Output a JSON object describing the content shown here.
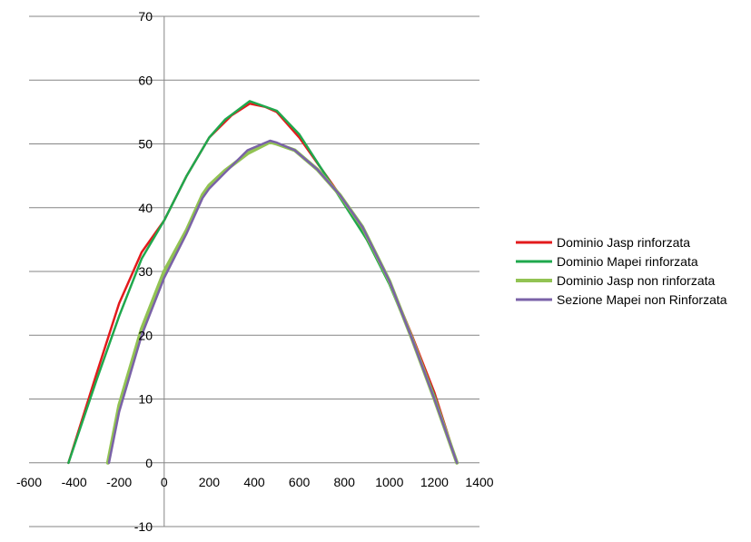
{
  "chart_data": {
    "type": "line",
    "title": "",
    "xlabel": "",
    "ylabel": "",
    "xlim": [
      -600,
      1400
    ],
    "ylim": [
      -10,
      70
    ],
    "x_ticks": [
      -600,
      -400,
      -200,
      0,
      200,
      400,
      600,
      800,
      1000,
      1200,
      1400
    ],
    "y_ticks": [
      -10,
      0,
      10,
      20,
      30,
      40,
      50,
      60,
      70
    ],
    "x_tick_labels": [
      "-600",
      "-400",
      "-200",
      "0",
      "200",
      "400",
      "600",
      "800",
      "1000",
      "1200",
      "1400"
    ],
    "y_tick_labels": [
      "-10",
      "0",
      "10",
      "20",
      "30",
      "40",
      "50",
      "60",
      "70"
    ],
    "grid": "horizontal",
    "legend_position": "right",
    "series": [
      {
        "name": "Dominio Jasp rinforzata",
        "color": "#e31a1c",
        "width": 2.5,
        "points": [
          [
            -425,
            0
          ],
          [
            -300,
            14
          ],
          [
            -200,
            25
          ],
          [
            -100,
            33
          ],
          [
            0,
            38
          ],
          [
            100,
            45
          ],
          [
            200,
            51
          ],
          [
            300,
            54.5
          ],
          [
            380,
            56.3
          ],
          [
            450,
            55.8
          ],
          [
            500,
            55
          ],
          [
            600,
            51
          ],
          [
            700,
            46
          ],
          [
            800,
            41
          ],
          [
            900,
            35
          ],
          [
            1000,
            28.5
          ],
          [
            1100,
            20
          ],
          [
            1200,
            11
          ],
          [
            1300,
            0
          ]
        ]
      },
      {
        "name": "Dominio Mapei rinforzata",
        "color": "#1fa84d",
        "width": 2.5,
        "points": [
          [
            -425,
            0
          ],
          [
            -300,
            13
          ],
          [
            -200,
            23
          ],
          [
            -100,
            32
          ],
          [
            0,
            38
          ],
          [
            100,
            45
          ],
          [
            200,
            51
          ],
          [
            270,
            53.8
          ],
          [
            380,
            56.7
          ],
          [
            500,
            55.2
          ],
          [
            600,
            51.5
          ],
          [
            700,
            46
          ],
          [
            800,
            40.5
          ],
          [
            900,
            35
          ],
          [
            1000,
            28
          ],
          [
            1100,
            19.5
          ],
          [
            1200,
            10.5
          ],
          [
            1300,
            0
          ]
        ]
      },
      {
        "name": "Dominio Jasp non rinforzata",
        "color": "#92c353",
        "width": 4,
        "points": [
          [
            -250,
            0
          ],
          [
            -200,
            9
          ],
          [
            -100,
            21
          ],
          [
            0,
            30
          ],
          [
            100,
            36.5
          ],
          [
            170,
            42
          ],
          [
            200,
            43.5
          ],
          [
            270,
            45.8
          ],
          [
            370,
            48.5
          ],
          [
            470,
            50.3
          ],
          [
            500,
            50
          ],
          [
            580,
            49
          ],
          [
            680,
            46
          ],
          [
            780,
            42
          ],
          [
            880,
            37
          ],
          [
            1000,
            28.5
          ],
          [
            1100,
            19.5
          ],
          [
            1200,
            10
          ],
          [
            1300,
            0
          ]
        ]
      },
      {
        "name": "Sezione Mapei non Rinforzata",
        "color": "#7a62a8",
        "width": 2.5,
        "points": [
          [
            -245,
            0
          ],
          [
            -200,
            8
          ],
          [
            -100,
            20
          ],
          [
            0,
            29
          ],
          [
            100,
            36
          ],
          [
            170,
            41.5
          ],
          [
            200,
            43
          ],
          [
            270,
            45.5
          ],
          [
            370,
            49
          ],
          [
            470,
            50.5
          ],
          [
            500,
            50.2
          ],
          [
            580,
            49
          ],
          [
            680,
            46
          ],
          [
            780,
            42
          ],
          [
            880,
            37
          ],
          [
            1000,
            28.5
          ],
          [
            1100,
            19.5
          ],
          [
            1200,
            10
          ],
          [
            1300,
            0
          ]
        ]
      }
    ]
  }
}
